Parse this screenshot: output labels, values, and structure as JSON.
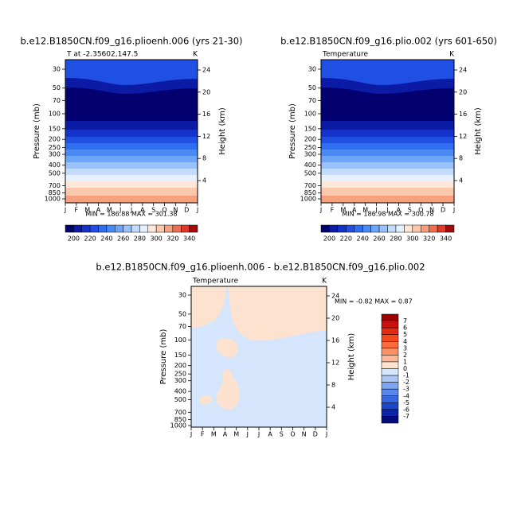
{
  "months": [
    "J",
    "F",
    "M",
    "A",
    "M",
    "J",
    "J",
    "A",
    "S",
    "O",
    "N",
    "D",
    "J"
  ],
  "panels": [
    {
      "title": "b.e12.B1850CN.f09_g16.plioenh.006 (yrs 21-30)",
      "subtitle": "T at -2.35602,147.5",
      "unit": "K",
      "y_label": "Pressure (mb)",
      "y2_label": "Height (km)",
      "pressure_ticks": [
        30,
        50,
        70,
        100,
        150,
        200,
        250,
        300,
        400,
        500,
        700,
        850,
        1000
      ],
      "height_ticks": [
        24,
        20,
        16,
        12,
        8,
        4
      ],
      "stats": "MIN = 186.88  MAX = 301.38",
      "colorbar_labels": [
        200,
        220,
        240,
        260,
        280,
        300,
        320,
        340
      ]
    },
    {
      "title": "b.e12.B1850CN.f09_g16.plio.002 (yrs 601-650)",
      "subtitle": "Temperature",
      "unit": "K",
      "y_label": "Pressure (mb)",
      "y2_label": "Height (km)",
      "pressure_ticks": [
        30,
        50,
        70,
        100,
        150,
        200,
        250,
        300,
        400,
        500,
        700,
        850,
        1000
      ],
      "height_ticks": [
        24,
        20,
        16,
        12,
        8,
        4
      ],
      "stats": "MIN = 186.98  MAX = 300.78",
      "colorbar_labels": [
        200,
        220,
        240,
        260,
        280,
        300,
        320,
        340
      ]
    },
    {
      "title": "b.e12.B1850CN.f09_g16.plioenh.006 - b.e12.B1850CN.f09_g16.plio.002",
      "subtitle": "Temperature",
      "unit": "K",
      "y_label": "Pressure (mb)",
      "y2_label": "Height (km)",
      "pressure_ticks": [
        30,
        50,
        70,
        100,
        150,
        200,
        250,
        300,
        400,
        500,
        700,
        850,
        1000
      ],
      "height_ticks": [
        24,
        20,
        16,
        12,
        8,
        4
      ],
      "stats": "MIN =  -0.82 MAX =   0.87",
      "colorbar_labels": [
        7,
        6,
        5,
        4,
        3,
        2,
        1,
        0,
        -1,
        -2,
        -3,
        -4,
        -5,
        -6,
        -7
      ]
    }
  ],
  "colors": [
    "#03006f",
    "#0b1ba5",
    "#1433cd",
    "#1f4fe3",
    "#2f6ef0",
    "#4a8af5",
    "#6da6f8",
    "#97c2fb",
    "#c3dcfd",
    "#e6f0fe",
    "#fde7d8",
    "#fbc8ad",
    "#f7a07e",
    "#ef6e4f",
    "#dd3a27",
    "#a10d0d"
  ],
  "diff_colors": [
    "#a00000",
    "#c81010",
    "#e42a14",
    "#f5471c",
    "#fa6a3a",
    "#fb9066",
    "#fcb896",
    "#fde3cf",
    "#d5e5fb",
    "#a9c6f6",
    "#7ea6f0",
    "#5787ea",
    "#3667e0",
    "#1c46cc",
    "#0e24a8",
    "#030a7a"
  ]
}
